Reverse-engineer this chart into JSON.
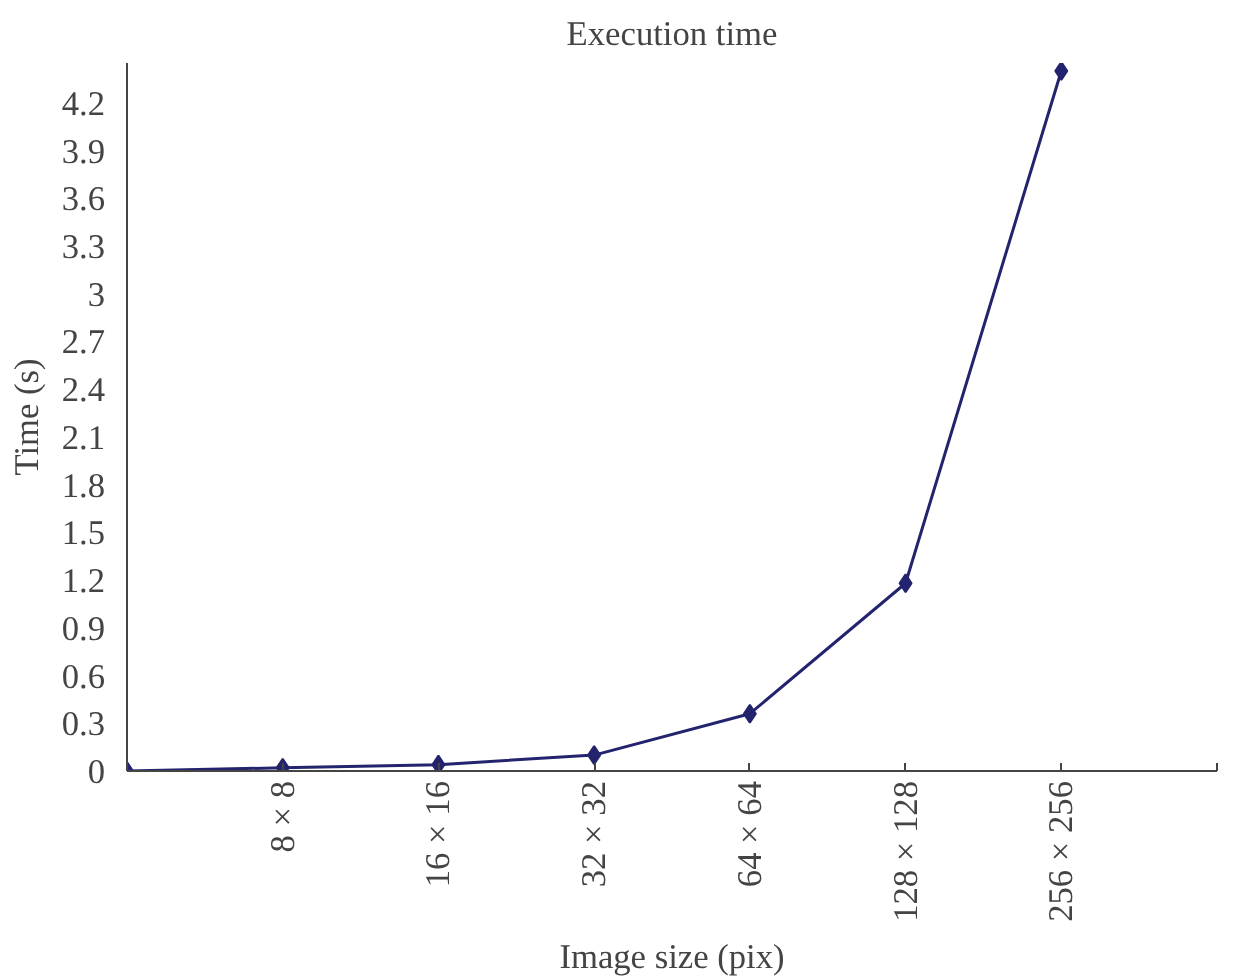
{
  "chart_data": {
    "type": "line",
    "title": "Execution time",
    "xlabel": "Image size (pix)",
    "ylabel": "Time (s)",
    "categories": [
      null,
      "8 × 8",
      "16 × 16",
      "32 × 32",
      "64 × 64",
      "128 × 128",
      "256 × 256",
      null
    ],
    "series": [
      {
        "color": "#23236e",
        "values": [
          0,
          0.02,
          0.04,
          0.1,
          0.36,
          1.18,
          4.4,
          null
        ]
      }
    ],
    "ylim": [
      0,
      4.45
    ],
    "yticks": [
      0,
      0.3,
      0.6,
      0.9,
      1.2,
      1.5,
      1.8,
      2.1,
      2.4,
      2.7,
      3,
      3.3,
      3.6,
      3.9,
      4.2
    ],
    "grid": false,
    "marker": "diamond",
    "line_style": "solid"
  }
}
